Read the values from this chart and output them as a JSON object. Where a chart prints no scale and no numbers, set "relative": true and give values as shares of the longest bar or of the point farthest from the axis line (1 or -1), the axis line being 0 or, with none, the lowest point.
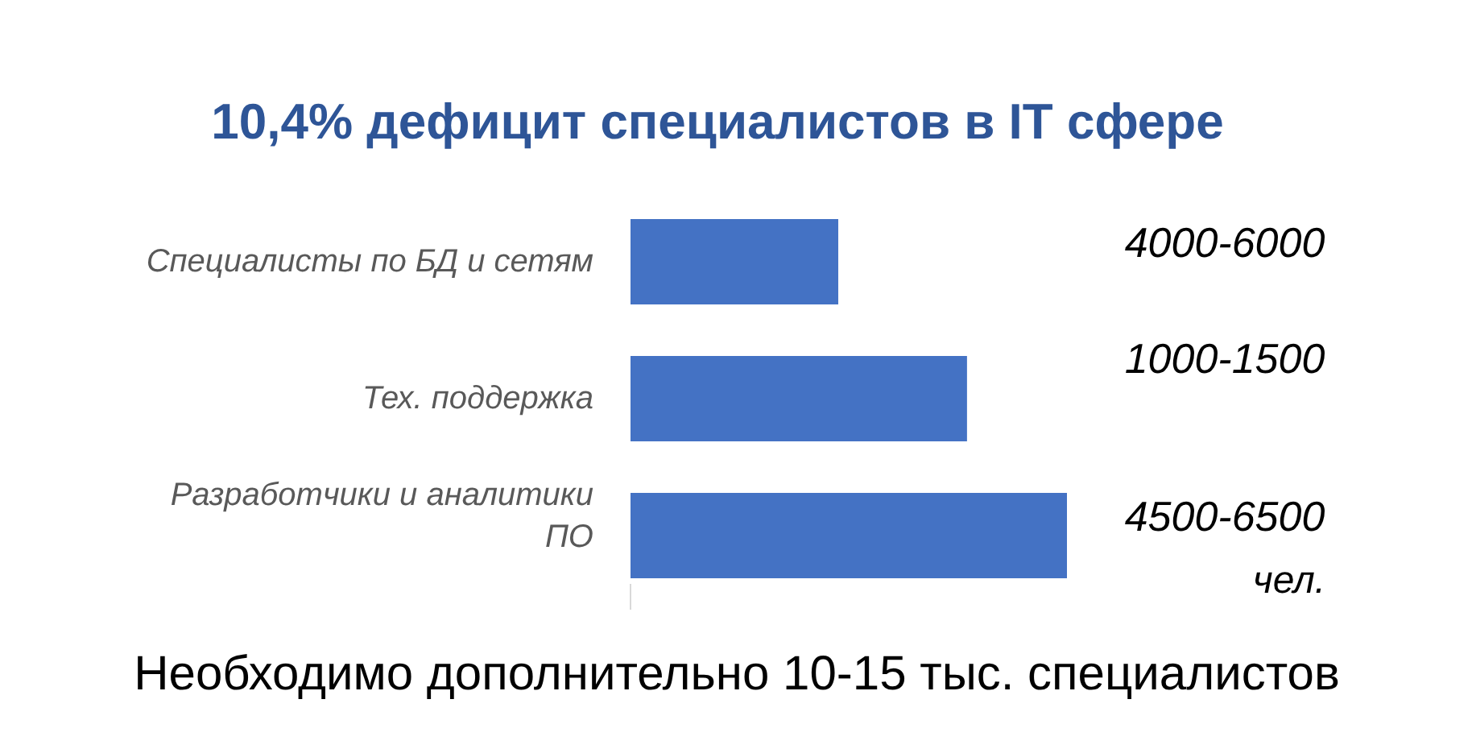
{
  "chart_data": {
    "type": "bar",
    "orientation": "horizontal",
    "relative": true,
    "title": "10,4% дефицит специалистов в IT сфере",
    "categories": [
      "Специалисты по БД и сетям",
      "Тех. поддержка",
      "Разработчики и аналитики ПО"
    ],
    "values": [
      0.476,
      0.771,
      1
    ],
    "color": "#4472c4",
    "grid": false,
    "annotations": [
      "4000-6000",
      "1000-1500",
      "4500-6500",
      "чел.",
      "Необходимо дополнительно 10-15 тыс. специалистов"
    ]
  }
}
